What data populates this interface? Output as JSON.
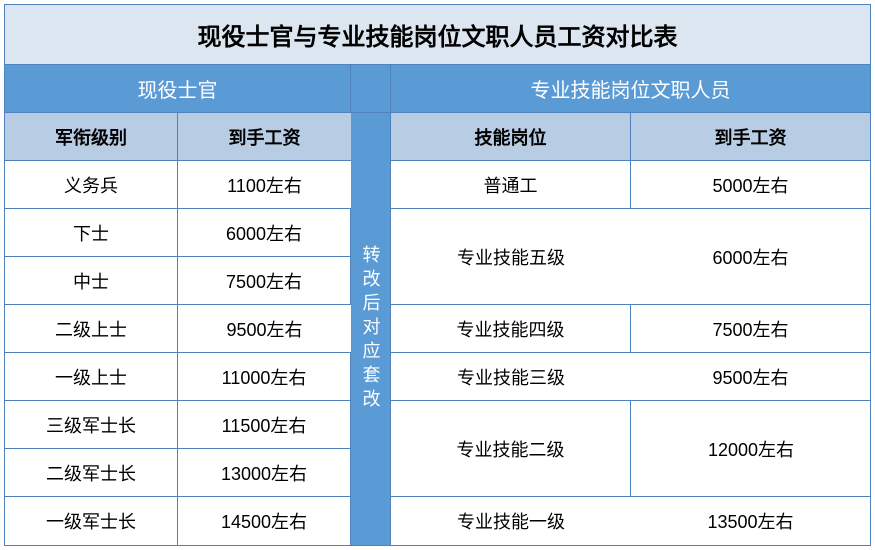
{
  "title": "现役士官与专业技能岗位文职人员工资对比表",
  "colors": {
    "title_bg": "#dce6f1",
    "header1_bg": "#5b9bd5",
    "header2_bg": "#b8cce4",
    "middle_bg": "#5b9bd5",
    "border": "#4f81bd",
    "header_text": "#ffffff",
    "cell_text": "#000000"
  },
  "fonts": {
    "title_size": 24,
    "header_size": 20,
    "cell_size": 18
  },
  "left_group_header": "现役士官",
  "right_group_header": "专业技能岗位文职人员",
  "middle_label": "转改后对应套改",
  "left_columns": [
    "军衔级别",
    "到手工资"
  ],
  "right_columns": [
    "技能岗位",
    "到手工资"
  ],
  "left_rows": [
    {
      "rank": "义务兵",
      "salary": "1100左右"
    },
    {
      "rank": "下士",
      "salary": "6000左右"
    },
    {
      "rank": "中士",
      "salary": "7500左右"
    },
    {
      "rank": "二级上士",
      "salary": "9500左右"
    },
    {
      "rank": "一级上士",
      "salary": "11000左右"
    },
    {
      "rank": "三级军士长",
      "salary": "11500左右"
    },
    {
      "rank": "二级军士长",
      "salary": "13000左右"
    },
    {
      "rank": "一级军士长",
      "salary": "14500左右"
    }
  ],
  "right_rows": [
    {
      "position": "普通工",
      "salary": "5000左右",
      "span": 1
    },
    {
      "position": "专业技能五级",
      "salary": "6000左右",
      "span": 2
    },
    {
      "position": "专业技能四级",
      "salary": "7500左右",
      "span": 1
    },
    {
      "position": "专业技能三级",
      "salary": "9500左右",
      "span": 1
    },
    {
      "position": "专业技能二级",
      "salary": "12000左右",
      "span": 2
    },
    {
      "position": "专业技能一级",
      "salary": "13500左右",
      "span": 1
    }
  ]
}
